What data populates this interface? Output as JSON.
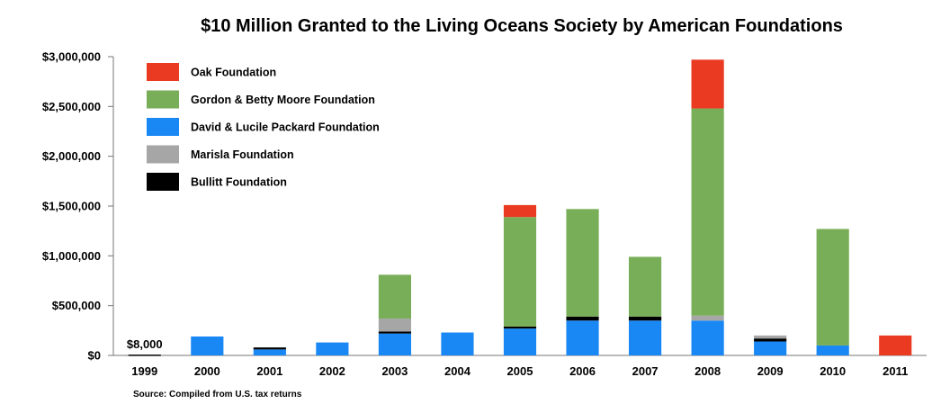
{
  "chart_data": {
    "type": "bar",
    "stacked": true,
    "title": "$10 Million Granted to the Living Oceans Society by American Foundations",
    "xlabel": "",
    "ylabel": "",
    "source": "Source: Compiled from U.S. tax returns",
    "categories": [
      "1999",
      "2000",
      "2001",
      "2002",
      "2003",
      "2004",
      "2005",
      "2006",
      "2007",
      "2008",
      "2009",
      "2010",
      "2011"
    ],
    "ylim": [
      0,
      3000000
    ],
    "yticks": [
      0,
      500000,
      1000000,
      1500000,
      2000000,
      2500000,
      3000000
    ],
    "ytick_labels": [
      "$0",
      "$500,000",
      "$1,000,000",
      "$1,500,000",
      "$2,000,000",
      "$2,500,000",
      "$3,000,000"
    ],
    "grid": false,
    "legend_position": "top-left",
    "series": [
      {
        "name": "David & Lucile Packard Foundation",
        "color": "#1a88f4",
        "values": [
          0,
          190000,
          60000,
          130000,
          220000,
          230000,
          270000,
          350000,
          350000,
          350000,
          140000,
          100000,
          0
        ]
      },
      {
        "name": "Bullitt Foundation",
        "color": "#000000",
        "values": [
          8000,
          0,
          20000,
          0,
          20000,
          0,
          20000,
          40000,
          40000,
          0,
          30000,
          0,
          0
        ]
      },
      {
        "name": "Marisla Foundation",
        "color": "#a6a6a6",
        "values": [
          0,
          0,
          0,
          0,
          130000,
          0,
          0,
          0,
          0,
          50000,
          30000,
          0,
          0
        ]
      },
      {
        "name": "Gordon & Betty Moore Foundation",
        "color": "#79ae58",
        "values": [
          0,
          0,
          0,
          0,
          440000,
          0,
          1100000,
          1080000,
          600000,
          2080000,
          0,
          1170000,
          0
        ]
      },
      {
        "name": "Oak Foundation",
        "color": "#ea3a21",
        "values": [
          0,
          0,
          0,
          0,
          0,
          0,
          120000,
          0,
          0,
          490000,
          0,
          0,
          200000
        ]
      }
    ],
    "legend_order": [
      "Oak Foundation",
      "Gordon & Betty Moore Foundation",
      "David & Lucile Packard Foundation",
      "Marisla Foundation",
      "Bullitt Foundation"
    ],
    "annotations": [
      {
        "text": "$8,000",
        "category": "1999",
        "value": 8000
      }
    ]
  }
}
